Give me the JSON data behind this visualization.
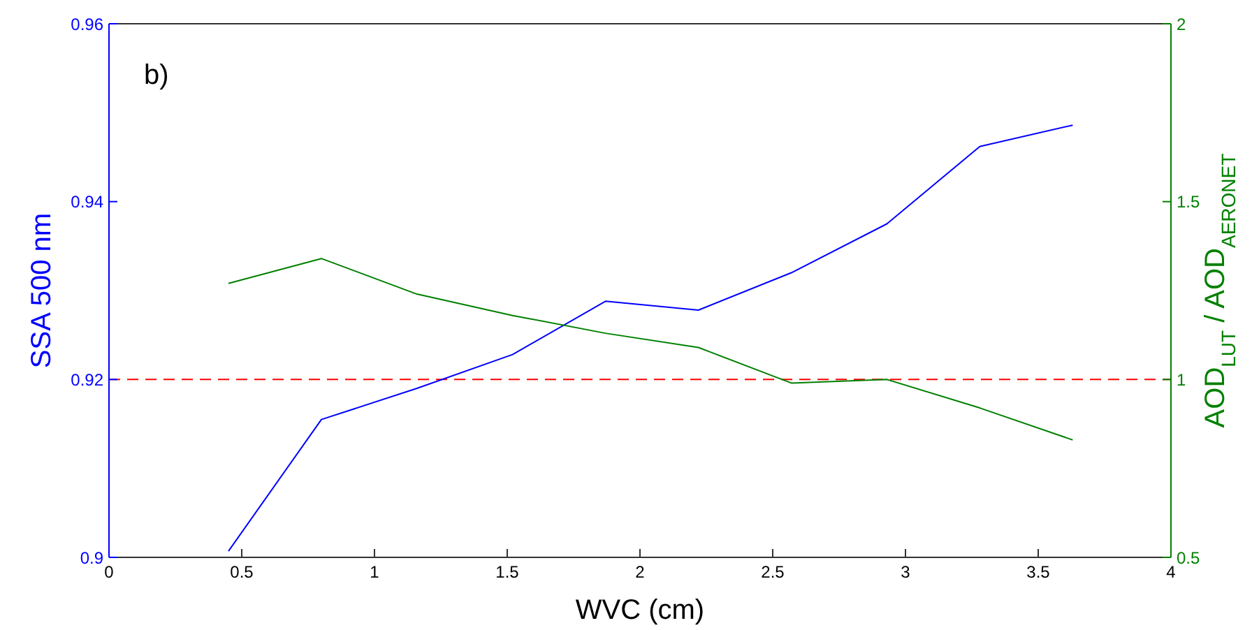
{
  "chart_data": {
    "type": "line",
    "xlabel": "WVC (cm)",
    "ylabel": "SSA 500 nm",
    "y2label": "AOD$_{LUT}$ / AOD$_{AERONET}$",
    "x": [
      0.45,
      0.8,
      1.16,
      1.52,
      1.87,
      2.22,
      2.57,
      2.93,
      3.28,
      3.63
    ],
    "series": [
      {
        "color": "#0000ff",
        "values": [
          0.9007,
          0.9155,
          0.919,
          0.9228,
          0.9288,
          0.9278,
          0.932,
          0.9375,
          0.9462,
          0.9486
        ]
      },
      {
        "color": "#008000",
        "axis": "y2",
        "values": [
          1.27,
          1.34,
          1.24,
          1.18,
          1.13,
          1.09,
          0.99,
          1.0,
          0.92,
          0.83
        ]
      }
    ],
    "xlim": [
      0,
      4
    ],
    "xticks": [
      0,
      0.5,
      1,
      1.5,
      2,
      2.5,
      3,
      3.5,
      4
    ],
    "ylim": [
      0.9,
      0.96
    ],
    "yticks": [
      0.9,
      0.92,
      0.94,
      0.96
    ],
    "y2lim": [
      0.5,
      2
    ],
    "y2ticks": [
      0.5,
      1,
      1.5,
      2
    ],
    "ref_lines": [
      {
        "axis": "y",
        "value": 0.92,
        "color": "#ff0000",
        "line_style": "dashed"
      }
    ],
    "annotations": [
      "b)"
    ],
    "grid": false,
    "legend": false,
    "marker": "none",
    "line_style": "solid"
  }
}
